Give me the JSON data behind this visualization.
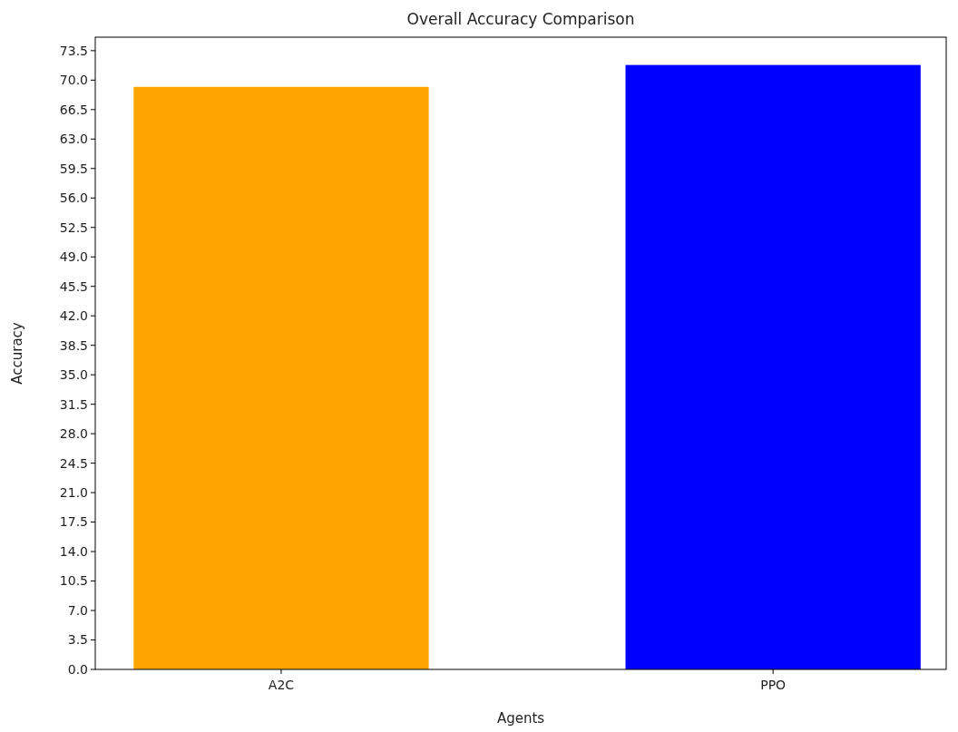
{
  "chart_data": {
    "type": "bar",
    "title": "Overall Accuracy Comparison",
    "xlabel": "Agents",
    "ylabel": "Accuracy",
    "categories": [
      "A2C",
      "PPO"
    ],
    "values": [
      69.2,
      71.8
    ],
    "colors": [
      "#ffa500",
      "#0000ff"
    ],
    "ylim": [
      0,
      75.1
    ],
    "yticks": [
      {
        "value": 0,
        "label": "0.0"
      },
      3.5,
      {
        "value": 7,
        "label": "7.0"
      },
      10.5,
      {
        "value": 14,
        "label": "14.0"
      },
      17.5,
      {
        "value": 21,
        "label": "21.0"
      },
      24.5,
      {
        "value": 28,
        "label": "28.0"
      },
      31.5,
      {
        "value": 35,
        "label": "35.0"
      },
      38.5,
      {
        "value": 42,
        "label": "42.0"
      },
      45.5,
      {
        "value": 49,
        "label": "49.0"
      },
      52.5,
      {
        "value": 56,
        "label": "56.0"
      },
      59.5,
      {
        "value": 63,
        "label": "63.0"
      },
      66.5,
      {
        "value": 70,
        "label": "70.0"
      },
      73.5
    ],
    "grid": false
  }
}
